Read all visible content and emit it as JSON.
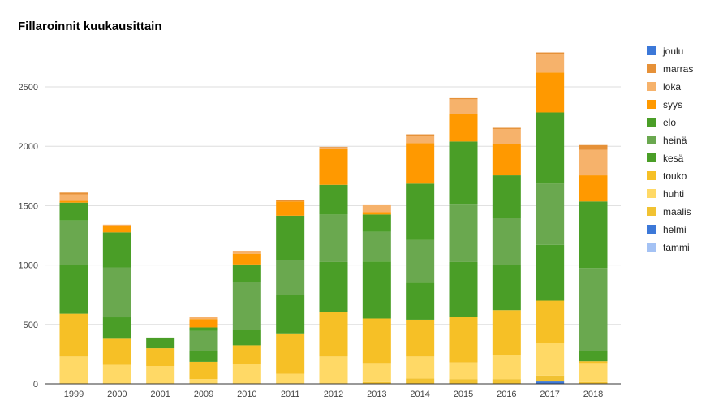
{
  "chart_data": {
    "type": "stacked-bar",
    "title": "Fillaroinnit kuukausittain",
    "xlabel": "",
    "ylabel": "",
    "ylim": [
      0,
      2800
    ],
    "yticks": [
      0,
      500,
      1000,
      1500,
      2000,
      2500
    ],
    "grid": true,
    "legend_position": "right",
    "categories": [
      "1999",
      "2000",
      "2001",
      "2009",
      "2010",
      "2011",
      "2012",
      "2013",
      "2014",
      "2015",
      "2016",
      "2017",
      "2018"
    ],
    "series": [
      {
        "name": "tammi",
        "color": "#a4c2f4",
        "values": [
          0,
          0,
          0,
          0,
          0,
          0,
          0,
          0,
          0,
          0,
          0,
          0,
          0
        ]
      },
      {
        "name": "helmi",
        "color": "#3c78d8",
        "values": [
          0,
          0,
          0,
          0,
          0,
          0,
          0,
          0,
          0,
          0,
          0,
          20,
          0
        ]
      },
      {
        "name": "maalis",
        "color": "#f1c232",
        "values": [
          0,
          0,
          0,
          0,
          0,
          0,
          0,
          15,
          45,
          40,
          40,
          50,
          15
        ]
      },
      {
        "name": "huhti",
        "color": "#ffd966",
        "values": [
          230,
          160,
          150,
          40,
          165,
          85,
          230,
          160,
          185,
          140,
          200,
          275,
          160
        ]
      },
      {
        "name": "touko",
        "color": "#f6c026",
        "values": [
          360,
          220,
          150,
          145,
          160,
          340,
          375,
          375,
          310,
          385,
          380,
          355,
          15
        ]
      },
      {
        "name": "kesä",
        "color": "#4a9e27",
        "values": [
          410,
          180,
          90,
          90,
          130,
          320,
          420,
          480,
          310,
          460,
          380,
          470,
          85
        ]
      },
      {
        "name": "heinä",
        "color": "#6aa84f",
        "values": [
          375,
          420,
          0,
          170,
          400,
          300,
          400,
          250,
          360,
          490,
          400,
          515,
          700
        ]
      },
      {
        "name": "elo",
        "color": "#4a9e27",
        "values": [
          150,
          295,
          0,
          30,
          150,
          370,
          250,
          145,
          475,
          525,
          355,
          600,
          560
        ]
      },
      {
        "name": "syys",
        "color": "#ff9900",
        "values": [
          15,
          55,
          0,
          70,
          90,
          120,
          300,
          20,
          340,
          230,
          260,
          335,
          220
        ]
      },
      {
        "name": "loka",
        "color": "#f6b26b",
        "values": [
          55,
          10,
          0,
          15,
          25,
          0,
          15,
          60,
          60,
          125,
          130,
          160,
          215
        ]
      },
      {
        "name": "marras",
        "color": "#e69138",
        "values": [
          15,
          0,
          0,
          0,
          0,
          10,
          5,
          5,
          15,
          10,
          10,
          10,
          40
        ]
      },
      {
        "name": "joulu",
        "color": "#3c78d8",
        "values": [
          0,
          0,
          0,
          0,
          0,
          0,
          0,
          0,
          0,
          0,
          0,
          0,
          0
        ]
      }
    ],
    "legend_order": [
      "joulu",
      "marras",
      "loka",
      "syys",
      "elo",
      "heinä",
      "kesä",
      "touko",
      "huhti",
      "maalis",
      "helmi",
      "tammi"
    ]
  }
}
